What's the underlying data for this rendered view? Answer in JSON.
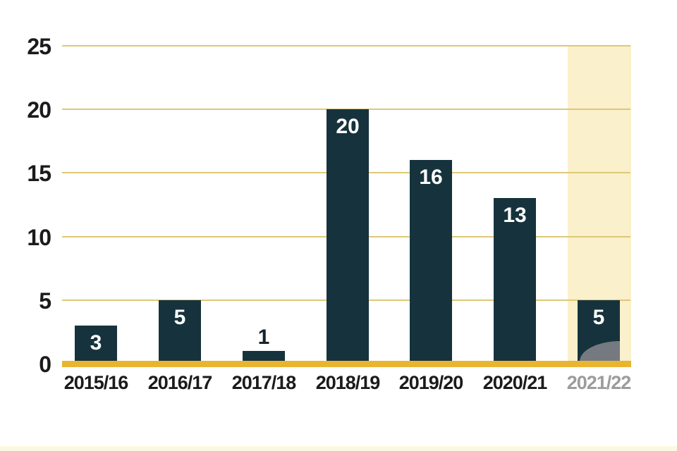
{
  "chart_data": {
    "type": "bar",
    "title": "",
    "xlabel": "",
    "ylabel": "",
    "categories": [
      "2015/16",
      "2016/17",
      "2017/18",
      "2018/19",
      "2019/20",
      "2020/21",
      "2021/22"
    ],
    "values": [
      3,
      5,
      1,
      20,
      16,
      13,
      5
    ],
    "bar_value_labels": [
      "3",
      "5",
      "1",
      "20",
      "16",
      "13",
      "5"
    ],
    "y_ticks": [
      0,
      5,
      10,
      15,
      20,
      25
    ],
    "ylim": [
      0,
      25
    ],
    "grid": "horizontal-only",
    "legend": "none",
    "highlighted_category": "2021/22",
    "notes": "Last category 2021/22 sits on a pale yellow highlight band with a gray decorative arc in the bar's bottom-right corner; its axis label is gray.",
    "colors": {
      "bar": "#16333d",
      "bar_value_label_inside": "#ffffff",
      "bar_value_label_outside": "#17222a",
      "gridline": "#ddc878",
      "baseline": "#e9b531",
      "highlight_band": "#faf0cb",
      "axis_label": "#1b1b1b",
      "highlight_axis_label": "#9c9c9c",
      "decorative_arc": "#747a80"
    }
  }
}
